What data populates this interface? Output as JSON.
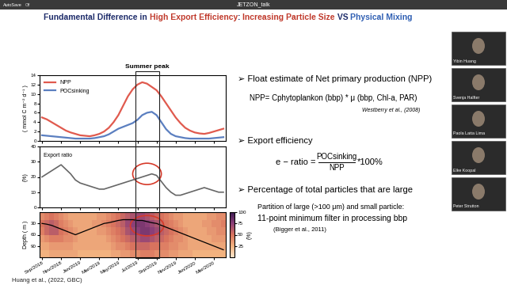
{
  "window": {
    "app_bar": {
      "autosave": "AutoSave",
      "autosave_state": "Off",
      "file_name": "JETZON_talk"
    },
    "participants": [
      "Yibin Huang",
      "Svenja Halfter",
      "Paola Latta Lima",
      "Elke Koopal",
      "Peter Strutton"
    ]
  },
  "slide": {
    "title_segments": [
      {
        "text": "Fundamental Difference in ",
        "color": "#1f2d6b"
      },
      {
        "text": "High Export Efficiency",
        "color": "#c0392b"
      },
      {
        "text": ": ",
        "color": "#1f2d6b"
      },
      {
        "text": "Increasing Particle Size",
        "color": "#c0392b"
      },
      {
        "text": " VS ",
        "color": "#1f2d6b"
      },
      {
        "text": "Physical Mixing",
        "color": "#2f5fb3"
      }
    ],
    "summer_peak": {
      "label": "Summer peak",
      "start": "Jul/2019",
      "end": "Sep/2019"
    },
    "reference": "Huang et al., (2022, GBC)",
    "bullets": [
      {
        "heading": "➢ Float estimate of Net primary production (NPP)",
        "formula": "NPP= Cphytoplankon (bbp) * μ (bbp, Chl-a, PAR)",
        "citation": "Westberry et al., (2008)"
      },
      {
        "heading": "➢ Export efficiency",
        "equation": {
          "lhs": "e − ratio =",
          "numerator": "POCsinking",
          "denominator": "NPP",
          "suffix": "*100%"
        }
      },
      {
        "heading": "➢ Percentage of total particles that are large",
        "lines": [
          "Partition of large (>100 μm) and small particle:",
          "11-point minimum filter in processing bbp"
        ],
        "citation": "(Bigger et al., 2011)"
      }
    ]
  },
  "chart_data": [
    {
      "type": "line",
      "y_label": "( mmol C m⁻² d⁻¹ )",
      "categories": [
        "Sep/2018",
        null,
        null,
        null,
        "Nov/2018",
        null,
        null,
        null,
        "Jan/2019",
        null,
        null,
        null,
        "Mar/2019",
        null,
        null,
        null,
        "May/2019",
        null,
        null,
        null,
        "Jul/2019",
        null,
        null,
        null,
        "Sep/2019",
        null,
        null,
        null,
        "Nov/2019",
        null,
        null,
        null,
        "Jan/2020",
        null,
        null,
        null,
        "Mar/2020",
        null,
        null
      ],
      "series": [
        {
          "name": "NPP",
          "color": "#e05a4e",
          "values": [
            5.0,
            4.6,
            4.0,
            3.4,
            2.8,
            2.2,
            1.8,
            1.5,
            1.2,
            1.1,
            1.0,
            1.2,
            1.5,
            2.0,
            2.8,
            4.0,
            5.5,
            7.5,
            9.5,
            11.0,
            12.0,
            12.5,
            12.2,
            11.5,
            10.8,
            9.5,
            8.0,
            6.5,
            5.0,
            3.8,
            2.8,
            2.2,
            1.8,
            1.6,
            1.5,
            1.7,
            2.0,
            2.3,
            2.6
          ]
        },
        {
          "name": "POCsinking",
          "color": "#5b7fc0",
          "values": [
            1.2,
            1.1,
            1.0,
            0.9,
            0.8,
            0.7,
            0.6,
            0.5,
            0.5,
            0.5,
            0.5,
            0.6,
            0.8,
            1.0,
            1.4,
            2.0,
            2.6,
            3.0,
            3.4,
            3.8,
            4.5,
            5.5,
            6.0,
            6.2,
            5.5,
            4.0,
            2.5,
            1.5,
            1.0,
            0.8,
            0.6,
            0.5,
            0.5,
            0.5,
            0.5,
            0.5,
            0.6,
            0.7,
            0.8
          ]
        }
      ],
      "ylim": [
        0,
        14
      ],
      "yticks": [
        0,
        2,
        4,
        6,
        8,
        10,
        12,
        14
      ],
      "legend": "upper left",
      "tick_labels": "y"
    },
    {
      "type": "line",
      "y_label": "(%)",
      "annotation": "Export ratio",
      "categories": [
        "Sep/2018",
        null,
        null,
        null,
        "Nov/2018",
        null,
        null,
        null,
        "Jan/2019",
        null,
        null,
        null,
        "Mar/2019",
        null,
        null,
        null,
        "May/2019",
        null,
        null,
        null,
        "Jul/2019",
        null,
        null,
        null,
        "Sep/2019",
        null,
        null,
        null,
        "Nov/2019",
        null,
        null,
        null,
        "Jan/2020",
        null,
        null,
        null,
        "Mar/2020",
        null,
        null
      ],
      "series": [
        {
          "color": "#666666",
          "values": [
            20,
            22,
            24,
            26,
            28,
            25,
            22,
            18,
            16,
            15,
            14,
            13,
            12,
            12,
            13,
            14,
            15,
            16,
            17,
            18,
            19,
            20,
            21,
            22,
            21,
            17,
            13,
            10,
            8,
            8,
            9,
            10,
            11,
            12,
            13,
            12,
            11,
            10,
            10
          ]
        }
      ],
      "ylim": [
        0,
        40
      ],
      "yticks": [
        0,
        10,
        20,
        30,
        40
      ],
      "tick_labels": "y"
    },
    {
      "type": "heatmap",
      "y_label": "Depth ( m )",
      "categories": [
        "Sep/2018",
        null,
        null,
        null,
        "Nov/2018",
        null,
        null,
        null,
        "Jan/2019",
        null,
        null,
        null,
        "Mar/2019",
        null,
        null,
        null,
        "May/2019",
        null,
        null,
        null,
        "Jul/2019",
        null,
        null,
        null,
        "Sep/2019",
        null,
        null,
        null,
        "Nov/2019",
        null,
        null,
        null,
        "Jan/2020",
        null,
        null,
        null,
        "Mar/2020",
        null,
        null
      ],
      "depth_bins": [
        0,
        20,
        40,
        60,
        80,
        100,
        120
      ],
      "cells": [
        [
          40,
          45,
          50,
          45,
          40,
          35,
          30,
          30,
          30,
          30,
          30,
          30,
          35,
          35,
          40,
          45,
          50,
          55,
          60,
          65,
          70,
          70,
          65,
          60,
          55,
          50,
          45,
          40,
          35,
          35,
          30,
          30,
          30,
          30,
          30,
          35,
          35,
          40,
          40
        ],
        [
          50,
          55,
          60,
          55,
          45,
          40,
          35,
          30,
          30,
          30,
          30,
          35,
          35,
          40,
          45,
          50,
          55,
          60,
          70,
          75,
          80,
          80,
          75,
          70,
          65,
          55,
          50,
          45,
          40,
          35,
          30,
          30,
          30,
          30,
          35,
          35,
          40,
          40,
          45
        ],
        [
          45,
          55,
          60,
          60,
          50,
          45,
          40,
          35,
          30,
          30,
          30,
          30,
          35,
          35,
          40,
          45,
          50,
          55,
          65,
          70,
          75,
          80,
          80,
          75,
          70,
          60,
          55,
          50,
          45,
          40,
          35,
          30,
          30,
          30,
          30,
          35,
          35,
          40,
          40
        ],
        [
          35,
          40,
          45,
          45,
          45,
          40,
          40,
          35,
          30,
          30,
          30,
          30,
          30,
          30,
          35,
          40,
          45,
          50,
          55,
          60,
          65,
          70,
          70,
          65,
          60,
          55,
          50,
          45,
          40,
          40,
          35,
          30,
          30,
          30,
          30,
          30,
          35,
          35,
          35
        ],
        [
          30,
          30,
          35,
          35,
          35,
          35,
          35,
          30,
          30,
          30,
          30,
          30,
          30,
          30,
          30,
          35,
          40,
          40,
          45,
          50,
          55,
          55,
          55,
          50,
          50,
          45,
          45,
          40,
          40,
          35,
          35,
          30,
          30,
          30,
          30,
          30,
          30,
          30,
          30
        ],
        [
          25,
          25,
          30,
          30,
          30,
          30,
          30,
          30,
          25,
          25,
          25,
          25,
          25,
          25,
          25,
          30,
          30,
          35,
          35,
          40,
          40,
          45,
          45,
          45,
          40,
          40,
          40,
          35,
          35,
          30,
          30,
          30,
          25,
          25,
          25,
          25,
          25,
          25,
          25
        ]
      ],
      "colorbar": {
        "range": [
          0,
          100
        ],
        "ticks": [
          25,
          50,
          75,
          100
        ],
        "label": "(%)"
      },
      "lines": [
        {
          "color": "#000000",
          "values": [
            30,
            32,
            35,
            40,
            45,
            50,
            55,
            60,
            55,
            50,
            45,
            40,
            35,
            30,
            28,
            25,
            22,
            20,
            20,
            20,
            22,
            22,
            25,
            28,
            30,
            35,
            40,
            45,
            50,
            55,
            60,
            65,
            70,
            75,
            80,
            85,
            90,
            95,
            100
          ]
        }
      ],
      "ylim": [
        120,
        0
      ],
      "yticks": [
        30,
        60,
        90
      ]
    }
  ]
}
